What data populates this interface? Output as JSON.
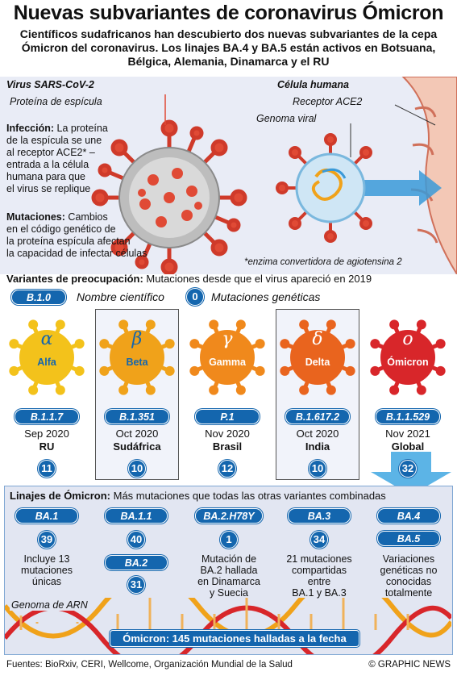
{
  "title": "Nuevas subvariantes de coronavirus Ómicron",
  "subtitle": "Científicos sudafricanos han descubierto dos nuevas subvariantes de la cepa Ómicron del coronavirus. Los linajes BA.4 y BA.5 están activos en Botsuana, Bélgica, Alemania, Dinamarca y el RU",
  "diagram": {
    "virus_label": "Virus SARS-CoV-2",
    "spike_label": "Proteína de espícula",
    "cell_label": "Célula humana",
    "ace2_label": "Receptor ACE2",
    "genome_label": "Genoma viral",
    "infection_head": "Infección:",
    "infection_text_1": "La proteína",
    "infection_text_2": "de la espícula se une",
    "infection_text_3": "al receptor ACE2* –",
    "infection_text_4": "entrada a la célula",
    "infection_text_5": "humana para que",
    "infection_text_6": "el virus se replique",
    "mutation_head": "Mutaciones:",
    "mutation_text_1": "Cambios",
    "mutation_text_2": "en el código genético de",
    "mutation_text_3": "la proteína espícula afectan",
    "mutation_text_4": "la capacidad de infectar células",
    "footnote": "*enzima convertidora de agiotensina 2"
  },
  "concern": {
    "head": "Variantes de preocupación:",
    "text": "Mutaciones desde que el virus apareció en 2019",
    "legend_pill": "B.1.0",
    "legend_pill_text": "Nombre científico",
    "legend_circle": "0",
    "legend_circle_text": "Mutaciones genéticas"
  },
  "variants": [
    {
      "greek": "α",
      "name": "Alfa",
      "code": "B.1.1.7",
      "date": "Sep 2020",
      "place": "RU",
      "mutations": "11",
      "color": "#f3c21b"
    },
    {
      "greek": "β",
      "name": "Beta",
      "code": "B.1.351",
      "date": "Oct 2020",
      "place": "Sudáfrica",
      "mutations": "10",
      "color": "#f0a21a"
    },
    {
      "greek": "γ",
      "name": "Gamma",
      "code": "P.1",
      "date": "Nov 2020",
      "place": "Brasil",
      "mutations": "12",
      "color": "#f0891c"
    },
    {
      "greek": "δ",
      "name": "Delta",
      "code": "B.1.617.2",
      "date": "Oct 2020",
      "place": "India",
      "mutations": "10",
      "color": "#e9641e"
    },
    {
      "greek": "ο",
      "name": "Ómicron",
      "code": "B.1.1.529",
      "date": "Nov 2021",
      "place": "Global",
      "mutations": "32",
      "color": "#d8262a"
    }
  ],
  "lineages": {
    "head": "Linajes de Ómicron:",
    "text": "Más mutaciones que todas las otras variantes combinadas",
    "ba1": {
      "code": "BA.1",
      "count": "39",
      "desc_1": "Incluye 13",
      "desc_2": "mutaciones",
      "desc_3": "únicas"
    },
    "ba11": {
      "code": "BA.1.1",
      "count": "40"
    },
    "ba2": {
      "code": "BA.2",
      "count": "31"
    },
    "ba2h": {
      "code": "BA.2.H78Y",
      "count": "1",
      "desc_1": "Mutación de",
      "desc_2": "BA.2 hallada",
      "desc_3": "en Dinamarca",
      "desc_4": "y Suecia"
    },
    "ba3": {
      "code": "BA.3",
      "count": "34",
      "desc_1": "21 mutaciones",
      "desc_2": "compartidas",
      "desc_3": "entre",
      "desc_4": "BA.1 y BA.3"
    },
    "ba4": {
      "code": "BA.4"
    },
    "ba5": {
      "code": "BA.5",
      "desc_1": "Variaciones",
      "desc_2": "genéticas no",
      "desc_3": "conocidas",
      "desc_4": "totalmente"
    },
    "rna_label": "Genoma de ARN",
    "banner": "Ómicron: 145 mutaciones halladas a la fecha"
  },
  "footer": {
    "sources": "Fuentes: BioRxiv, CERI, Wellcome, Organización Mundial de la Salud",
    "credit": "© GRAPHIC NEWS"
  }
}
